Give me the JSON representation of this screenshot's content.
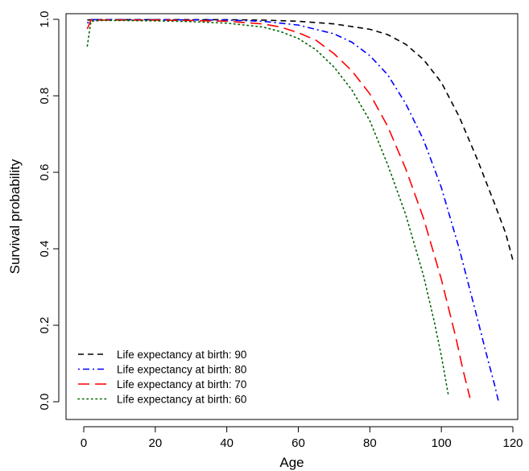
{
  "chart_data": {
    "type": "line",
    "title": "",
    "xlabel": "Age",
    "ylabel": "Survival probability",
    "xlim": [
      0,
      120
    ],
    "ylim": [
      0,
      1
    ],
    "x_ticks": [
      0,
      20,
      40,
      60,
      80,
      100,
      120
    ],
    "y_ticks": [
      0.0,
      0.2,
      0.4,
      0.6,
      0.8,
      1.0
    ],
    "x_tick_labels": [
      "0",
      "20",
      "40",
      "60",
      "80",
      "100",
      "120"
    ],
    "y_tick_labels": [
      "0.0",
      "0.2",
      "0.4",
      "0.6",
      "0.8",
      "1.0"
    ],
    "grid": false,
    "legend_position": "bottom-left",
    "series": [
      {
        "name": "Life expectancy at birth: 90",
        "color": "#000000",
        "dash": "dashed",
        "points": [
          [
            1,
            0.998
          ],
          [
            2,
            0.999
          ],
          [
            10,
            0.999
          ],
          [
            20,
            0.999
          ],
          [
            40,
            0.999
          ],
          [
            50,
            0.998
          ],
          [
            60,
            0.995
          ],
          [
            70,
            0.988
          ],
          [
            80,
            0.974
          ],
          [
            85,
            0.96
          ],
          [
            90,
            0.935
          ],
          [
            95,
            0.895
          ],
          [
            100,
            0.835
          ],
          [
            105,
            0.745
          ],
          [
            110,
            0.635
          ],
          [
            115,
            0.515
          ],
          [
            118,
            0.44
          ],
          [
            120,
            0.37
          ]
        ]
      },
      {
        "name": "Life expectancy at birth: 80",
        "color": "#0000ff",
        "dash": "dotdash",
        "points": [
          [
            1,
            0.99
          ],
          [
            2,
            0.999
          ],
          [
            10,
            0.999
          ],
          [
            20,
            0.999
          ],
          [
            40,
            0.998
          ],
          [
            50,
            0.995
          ],
          [
            60,
            0.985
          ],
          [
            70,
            0.962
          ],
          [
            75,
            0.94
          ],
          [
            80,
            0.905
          ],
          [
            85,
            0.855
          ],
          [
            90,
            0.78
          ],
          [
            95,
            0.685
          ],
          [
            100,
            0.56
          ],
          [
            105,
            0.4
          ],
          [
            110,
            0.22
          ],
          [
            113,
            0.11
          ],
          [
            115,
            0.04
          ],
          [
            116,
            0.0
          ]
        ]
      },
      {
        "name": "Life expectancy at birth: 70",
        "color": "#ff0000",
        "dash": "longdash",
        "points": [
          [
            1,
            0.975
          ],
          [
            2,
            0.998
          ],
          [
            10,
            0.998
          ],
          [
            20,
            0.998
          ],
          [
            30,
            0.997
          ],
          [
            40,
            0.995
          ],
          [
            50,
            0.988
          ],
          [
            55,
            0.98
          ],
          [
            60,
            0.965
          ],
          [
            65,
            0.945
          ],
          [
            70,
            0.91
          ],
          [
            75,
            0.865
          ],
          [
            80,
            0.805
          ],
          [
            85,
            0.72
          ],
          [
            90,
            0.61
          ],
          [
            95,
            0.48
          ],
          [
            100,
            0.32
          ],
          [
            104,
            0.17
          ],
          [
            106,
            0.085
          ],
          [
            108,
            0.01
          ]
        ]
      },
      {
        "name": "Life expectancy at birth: 60",
        "color": "#006400",
        "dash": "dotted",
        "points": [
          [
            1,
            0.93
          ],
          [
            2,
            0.995
          ],
          [
            5,
            0.997
          ],
          [
            10,
            0.997
          ],
          [
            20,
            0.996
          ],
          [
            30,
            0.994
          ],
          [
            40,
            0.99
          ],
          [
            50,
            0.98
          ],
          [
            55,
            0.968
          ],
          [
            60,
            0.95
          ],
          [
            65,
            0.92
          ],
          [
            70,
            0.875
          ],
          [
            75,
            0.815
          ],
          [
            80,
            0.735
          ],
          [
            85,
            0.62
          ],
          [
            90,
            0.49
          ],
          [
            95,
            0.33
          ],
          [
            98,
            0.21
          ],
          [
            100,
            0.12
          ],
          [
            102,
            0.015
          ]
        ]
      }
    ]
  }
}
